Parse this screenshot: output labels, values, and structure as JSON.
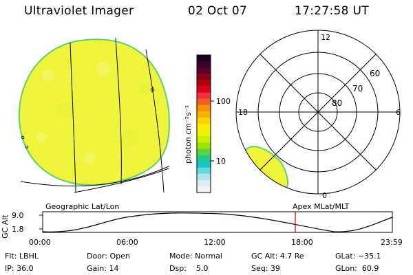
{
  "header": {
    "instrument": "Ultraviolet Imager",
    "date": "02 Oct 07",
    "time": "17:27:58 UT"
  },
  "colorbar": {
    "unit_label": "photon cm⁻²s⁻¹",
    "ticks": [
      "100",
      "10"
    ],
    "colors": [
      "#1a0020",
      "#3a0030",
      "#60002a",
      "#8a0018",
      "#b00010",
      "#d8001a",
      "#f0303a",
      "#f26020",
      "#f59000",
      "#f5b300",
      "#ffd400",
      "#ffee00",
      "#eef500",
      "#c8f000",
      "#9ae600",
      "#5ad63c",
      "#22c88a",
      "#10c8c8",
      "#66d8e0",
      "#aee6ee",
      "#dcecef",
      "#f2f4f4"
    ]
  },
  "left_map": {
    "caption": "Geographic Lat/Lon",
    "fill_color": "#eef53a"
  },
  "polar_map": {
    "caption": "Apex MLat/MLT",
    "mlt_labels": {
      "top": "12",
      "left": "18",
      "right": "6",
      "bottom": "0"
    },
    "mlat_labels": [
      "80",
      "70",
      "60"
    ]
  },
  "altitude_strip": {
    "axis_label": "GC Alt",
    "y_ticks": [
      "9.0",
      "1.8"
    ],
    "x_ticks": [
      "00:00",
      "06:00",
      "12:00",
      "18:00",
      "23:59"
    ],
    "marker_color": "#e00000",
    "marker_time": "17:27:58"
  },
  "footer": {
    "row1": [
      "Flt: LBHL",
      "Door: Open",
      "Mode: Normal",
      "GC Alt: 4.7 Re",
      "GLat: −35.1"
    ],
    "row2": [
      "IP: 36.0",
      "Gain: 14",
      "Dsp:    5.0",
      "Seq: 39",
      "GLon:  60.9"
    ]
  }
}
